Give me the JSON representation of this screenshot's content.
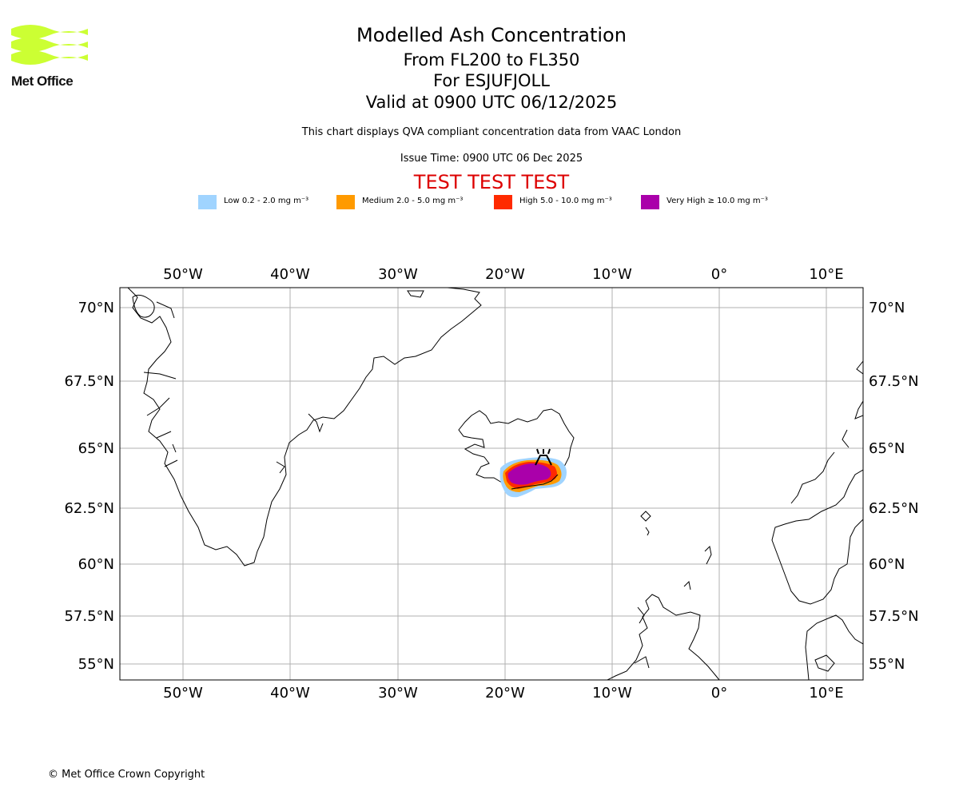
{
  "logo": {
    "text": "Met Office",
    "color": "#ccff33"
  },
  "header": {
    "title": "Modelled Ash Concentration",
    "subtitle_levels": "From FL200 to FL350",
    "subtitle_volcano": "For ESJUFJOLL",
    "subtitle_valid": "Valid at 0900 UTC 06/12/2025",
    "note": "This chart displays QVA compliant concentration data from VAAC London",
    "issue_time": "Issue Time: 0900 UTC 06 Dec 2025",
    "test_banner": "TEST TEST TEST",
    "test_color": "#dd0000"
  },
  "legend": [
    {
      "label": "Low 0.2 - 2.0 mg m⁻³",
      "color": "#a0d4ff"
    },
    {
      "label": "Medium 2.0 - 5.0 mg m⁻³",
      "color": "#ff9a00"
    },
    {
      "label": "High 5.0 - 10.0 mg m⁻³",
      "color": "#ff2a00"
    },
    {
      "label": "Very High ≥ 10.0 mg m⁻³",
      "color": "#aa00aa"
    }
  ],
  "map": {
    "lon_labels": [
      "50°W",
      "40°W",
      "30°W",
      "20°W",
      "10°W",
      "0°",
      "10°E"
    ],
    "lat_labels": [
      "70°N",
      "67.5°N",
      "65°N",
      "62.5°N",
      "60°N",
      "57.5°N",
      "55°N"
    ],
    "volcano_symbol": "volcano-icon"
  },
  "footer": {
    "copyright": "© Met Office Crown Copyright"
  }
}
